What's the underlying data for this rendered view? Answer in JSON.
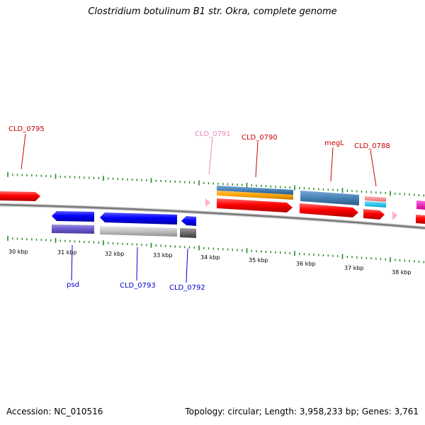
{
  "title": "Clostridium botulinum B1 str. Okra, complete genome",
  "footer": {
    "accession": "Accession: NC_010516",
    "summary": "Topology: circular; Length: 3,958,233 bp; Genes: 3,761"
  },
  "scale_labels": [
    "30 kbp",
    "31 kbp",
    "32 kbp",
    "33 kbp",
    "34 kbp",
    "35 kbp",
    "36 kbp",
    "37 kbp",
    "38 kbp"
  ],
  "gene_labels_top": [
    "CLD_0795",
    "CLD_0791",
    "CLD_0790",
    "megL",
    "CLD_0788"
  ],
  "gene_labels_bottom": [
    "psd",
    "CLD_0793",
    "CLD_0792"
  ],
  "colors": {
    "forward_gene": "#ff0000",
    "reverse_gene": "#0000ff",
    "label_forward": "#cc0000",
    "label_pink": "#ee88bb",
    "label_reverse": "#0000cc",
    "tick": "#228822",
    "backbone": "#808080"
  }
}
